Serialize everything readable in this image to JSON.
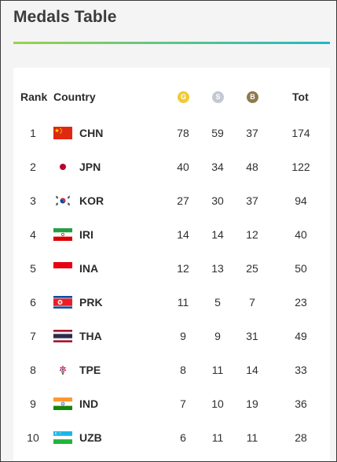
{
  "title": "Medals Table",
  "colors": {
    "gold": "#f1ca32",
    "silver": "#c3c8d3",
    "bronze": "#8d7a4e",
    "accent_start": "#9bd24a",
    "accent_end": "#22b8c6"
  },
  "headers": {
    "rank": "Rank",
    "country": "Country",
    "gold": "G",
    "silver": "S",
    "bronze": "B",
    "total": "Tot"
  },
  "rows": [
    {
      "rank": "1",
      "code": "CHN",
      "flag": "china-flag-icon",
      "gold": "78",
      "silver": "59",
      "bronze": "37",
      "total": "174"
    },
    {
      "rank": "2",
      "code": "JPN",
      "flag": "japan-flag-icon",
      "gold": "40",
      "silver": "34",
      "bronze": "48",
      "total": "122"
    },
    {
      "rank": "3",
      "code": "KOR",
      "flag": "korea-flag-icon",
      "gold": "27",
      "silver": "30",
      "bronze": "37",
      "total": "94"
    },
    {
      "rank": "4",
      "code": "IRI",
      "flag": "iran-flag-icon",
      "gold": "14",
      "silver": "14",
      "bronze": "12",
      "total": "40"
    },
    {
      "rank": "5",
      "code": "INA",
      "flag": "indonesia-flag-icon",
      "gold": "12",
      "silver": "13",
      "bronze": "25",
      "total": "50"
    },
    {
      "rank": "6",
      "code": "PRK",
      "flag": "north-korea-flag-icon",
      "gold": "11",
      "silver": "5",
      "bronze": "7",
      "total": "23"
    },
    {
      "rank": "7",
      "code": "THA",
      "flag": "thailand-flag-icon",
      "gold": "9",
      "silver": "9",
      "bronze": "31",
      "total": "49"
    },
    {
      "rank": "8",
      "code": "TPE",
      "flag": "chinese-taipei-flag-icon",
      "gold": "8",
      "silver": "11",
      "bronze": "14",
      "total": "33"
    },
    {
      "rank": "9",
      "code": "IND",
      "flag": "india-flag-icon",
      "gold": "7",
      "silver": "10",
      "bronze": "19",
      "total": "36"
    },
    {
      "rank": "10",
      "code": "UZB",
      "flag": "uzbekistan-flag-icon",
      "gold": "6",
      "silver": "11",
      "bronze": "11",
      "total": "28"
    }
  ]
}
